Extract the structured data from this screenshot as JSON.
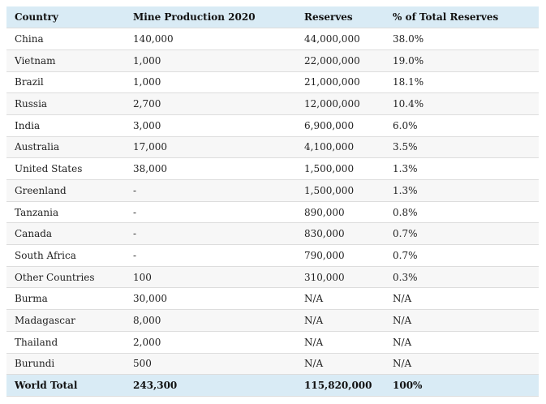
{
  "headers": [
    "Country",
    "Mine Production 2020",
    "Reserves",
    "% of Total Reserves"
  ],
  "rows": [
    [
      "China",
      "140,000",
      "44,000,000",
      "38.0%"
    ],
    [
      "Vietnam",
      "1,000",
      "22,000,000",
      "19.0%"
    ],
    [
      "Brazil",
      "1,000",
      "21,000,000",
      "18.1%"
    ],
    [
      "Russia",
      "2,700",
      "12,000,000",
      "10.4%"
    ],
    [
      "India",
      "3,000",
      "6,900,000",
      "6.0%"
    ],
    [
      "Australia",
      "17,000",
      "4,100,000",
      "3.5%"
    ],
    [
      "United States",
      "38,000",
      "1,500,000",
      "1.3%"
    ],
    [
      "Greenland",
      "-",
      "1,500,000",
      "1.3%"
    ],
    [
      "Tanzania",
      "-",
      "890,000",
      "0.8%"
    ],
    [
      "Canada",
      "-",
      "830,000",
      "0.7%"
    ],
    [
      "South Africa",
      "-",
      "790,000",
      "0.7%"
    ],
    [
      "Other Countries",
      "100",
      "310,000",
      "0.3%"
    ],
    [
      "Burma",
      "30,000",
      "N/A",
      "N/A"
    ],
    [
      "Madagascar",
      "8,000",
      "N/A",
      "N/A"
    ],
    [
      "Thailand",
      "2,000",
      "N/A",
      "N/A"
    ],
    [
      "Burundi",
      "500",
      "N/A",
      "N/A"
    ]
  ],
  "total": [
    "World Total",
    "243,300",
    "115,820,000",
    "100%"
  ],
  "colors": {
    "header_bg": "#d9ebf5",
    "alt_row_bg": "#f7f7f7",
    "border": "#dddddd"
  }
}
